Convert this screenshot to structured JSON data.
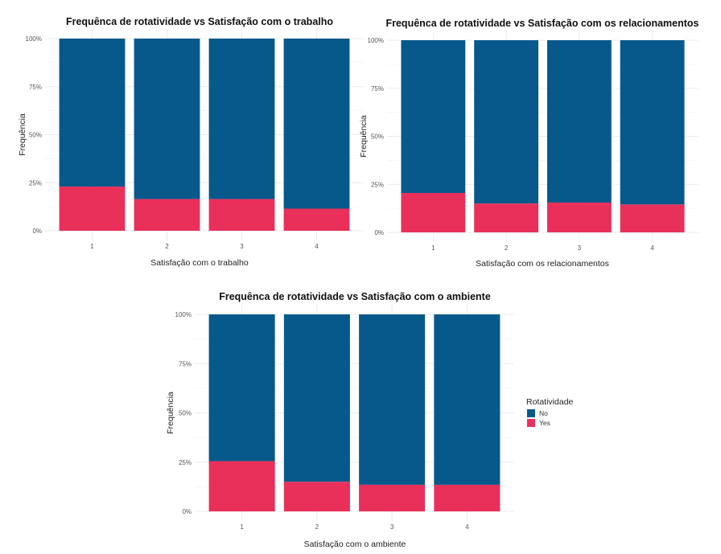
{
  "colors": {
    "No": "#08598b",
    "Yes": "#e8305a"
  },
  "legend": {
    "title": "Rotatividade",
    "items": [
      "No",
      "Yes"
    ]
  },
  "chart_data": [
    {
      "type": "bar",
      "stacked": true,
      "title": "Frequênca de rotatividade vs Satisfação com o trabalho",
      "xlabel": "Satisfação com o trabalho",
      "ylabel": "Frequência",
      "categories": [
        "1",
        "2",
        "3",
        "4"
      ],
      "yticks": [
        "0%",
        "25%",
        "50%",
        "75%",
        "100%"
      ],
      "ylim": [
        0,
        1
      ],
      "grid": true,
      "series": [
        {
          "name": "Yes",
          "values": [
            0.23,
            0.165,
            0.165,
            0.115
          ]
        },
        {
          "name": "No",
          "values": [
            0.77,
            0.835,
            0.835,
            0.885
          ]
        }
      ]
    },
    {
      "type": "bar",
      "stacked": true,
      "title": "Frequênca de rotatividade vs Satisfação com os relacionamentos",
      "xlabel": "Satisfação com os relacionamentos",
      "ylabel": "Frequência",
      "categories": [
        "1",
        "2",
        "3",
        "4"
      ],
      "yticks": [
        "0%",
        "25%",
        "50%",
        "75%",
        "100%"
      ],
      "ylim": [
        0,
        1
      ],
      "grid": true,
      "series": [
        {
          "name": "Yes",
          "values": [
            0.205,
            0.15,
            0.155,
            0.145
          ]
        },
        {
          "name": "No",
          "values": [
            0.795,
            0.85,
            0.845,
            0.855
          ]
        }
      ]
    },
    {
      "type": "bar",
      "stacked": true,
      "title": "Frequênca de rotatividade vs Satisfação com o ambiente",
      "xlabel": "Satisfação com o ambiente",
      "ylabel": "Frequência",
      "categories": [
        "1",
        "2",
        "3",
        "4"
      ],
      "yticks": [
        "0%",
        "25%",
        "50%",
        "75%",
        "100%"
      ],
      "ylim": [
        0,
        1
      ],
      "grid": true,
      "legend_position": "right",
      "series": [
        {
          "name": "Yes",
          "values": [
            0.255,
            0.15,
            0.135,
            0.135
          ]
        },
        {
          "name": "No",
          "values": [
            0.745,
            0.85,
            0.865,
            0.865
          ]
        }
      ]
    }
  ]
}
